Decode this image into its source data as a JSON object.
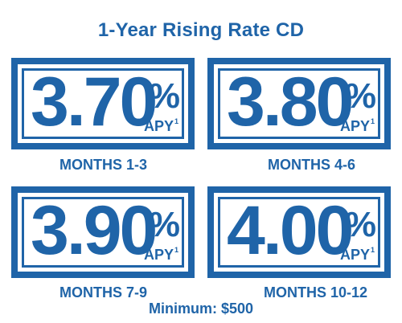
{
  "title": "1-Year Rising Rate CD",
  "tiers": [
    {
      "rate": "3.70",
      "percent_sign": "%",
      "apy": "APY",
      "footnote": "1",
      "months": "MONTHS 1-3"
    },
    {
      "rate": "3.80",
      "percent_sign": "%",
      "apy": "APY",
      "footnote": "1",
      "months": "MONTHS 4-6"
    },
    {
      "rate": "3.90",
      "percent_sign": "%",
      "apy": "APY",
      "footnote": "1",
      "months": "MONTHS 7-9"
    },
    {
      "rate": "4.00",
      "percent_sign": "%",
      "apy": "APY",
      "footnote": "1",
      "months": "MONTHS 10-12"
    }
  ],
  "minimum": "Minimum: $500",
  "colors": {
    "brand_blue": "#1f64a8",
    "background": "#ffffff"
  }
}
